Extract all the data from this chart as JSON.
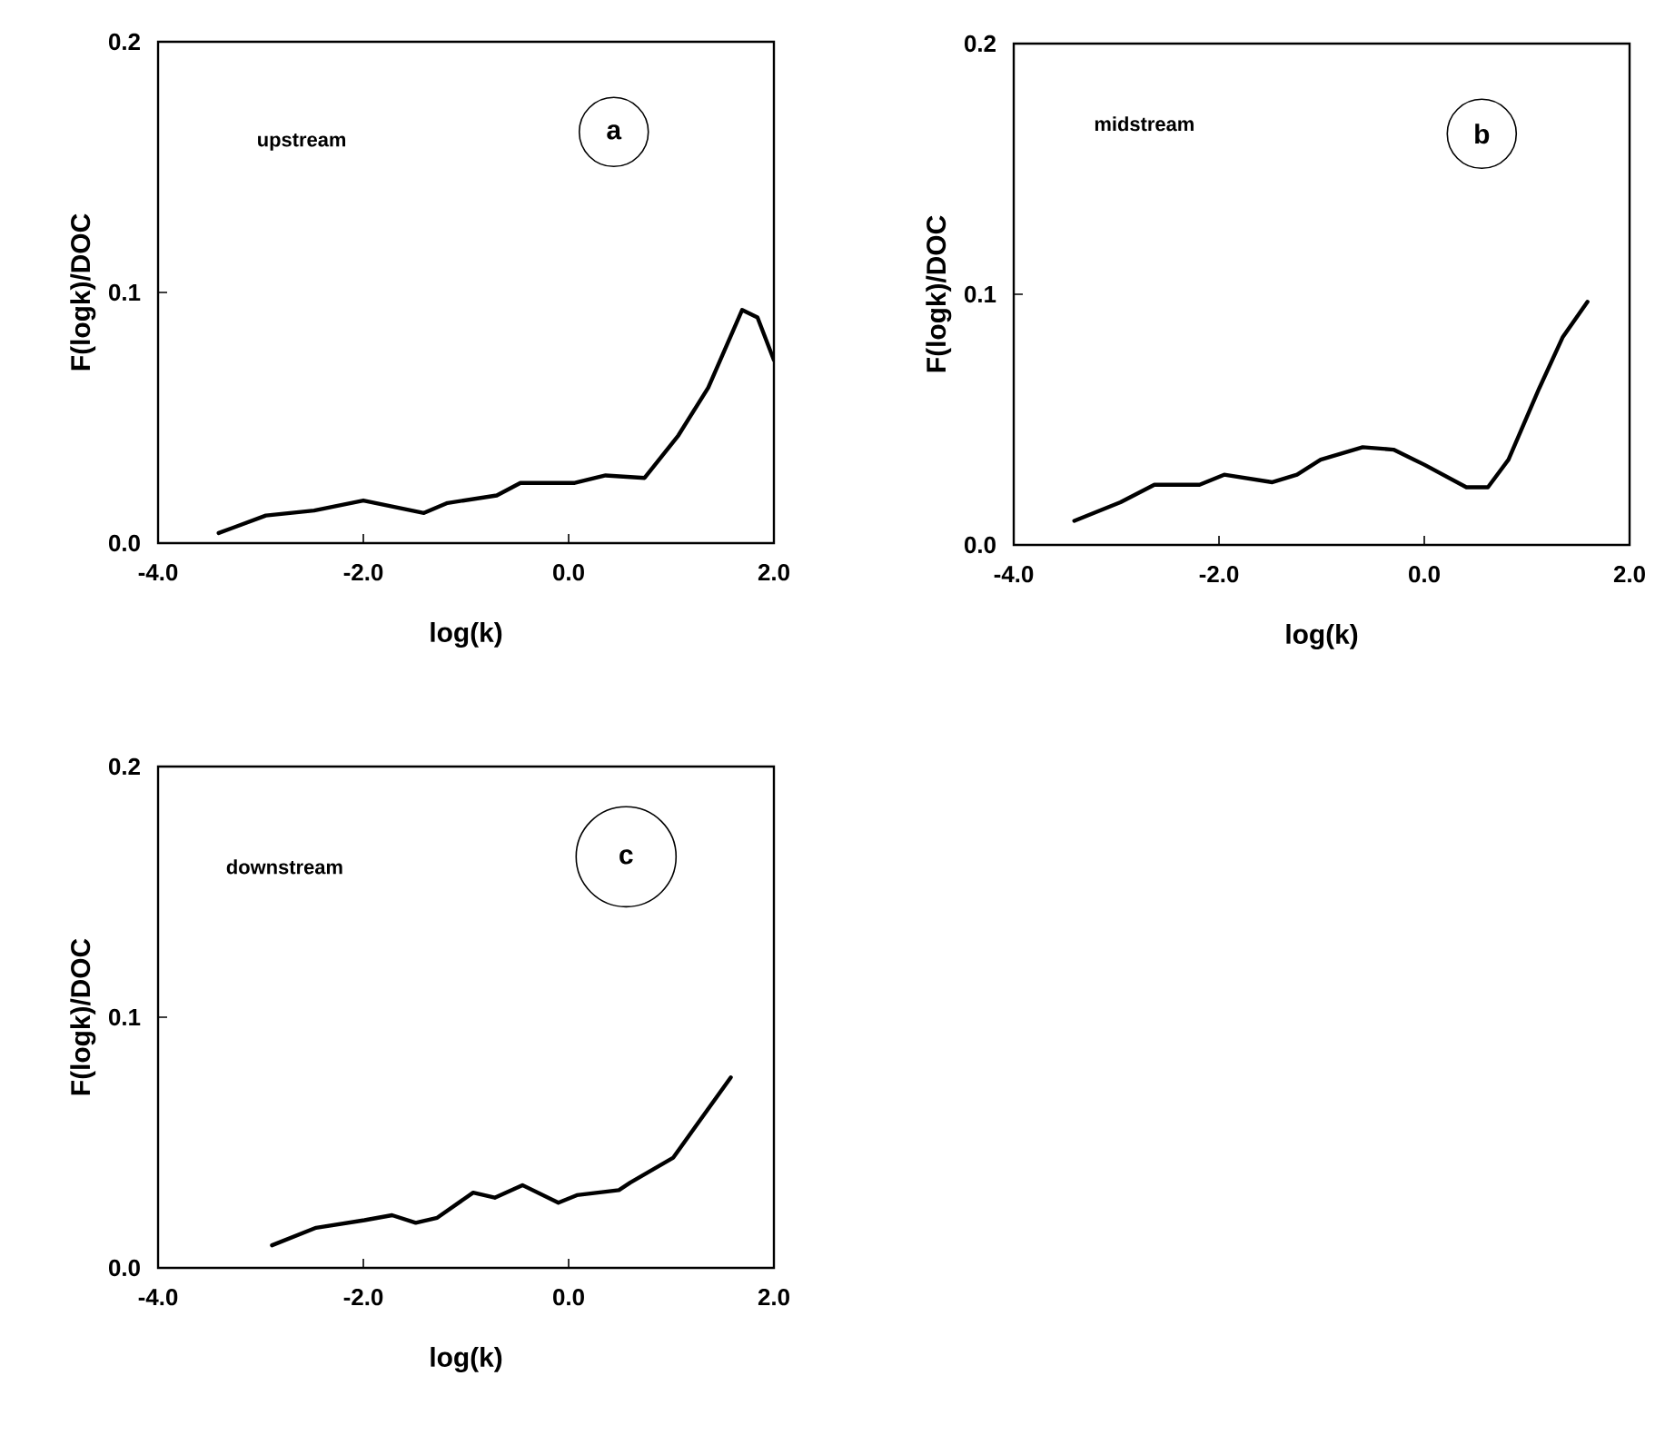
{
  "chart_data": [
    {
      "type": "line",
      "xlabel": "log(k)",
      "ylabel": "F(logk)/DOC",
      "annotations": [
        "upstream",
        "a"
      ],
      "color": "#000000",
      "x": [
        -3.41,
        -2.95,
        -2.48,
        -2.0,
        -1.41,
        -1.18,
        -0.7,
        -0.47,
        0.06,
        0.36,
        0.74,
        1.07,
        1.36,
        1.69,
        1.84,
        2.0
      ],
      "values": [
        0.004,
        0.011,
        0.013,
        0.017,
        0.012,
        0.016,
        0.019,
        0.024,
        0.024,
        0.027,
        0.026,
        0.043,
        0.062,
        0.093,
        0.09,
        0.073
      ],
      "xlim": [
        -4,
        2
      ],
      "ylim": [
        0,
        0.2
      ],
      "xticks": [
        {
          "value": -4,
          "label": "-4.0"
        },
        {
          "value": -2,
          "label": "-2.0"
        },
        {
          "value": 0,
          "label": "0.0"
        },
        {
          "value": 2,
          "label": "2.0"
        }
      ],
      "yticks": [
        {
          "value": 0,
          "label": "0.0"
        },
        {
          "value": 0.1,
          "label": "0.1"
        },
        {
          "value": 0.2,
          "label": "0.2"
        }
      ],
      "line_style": "solid",
      "marker": "none"
    },
    {
      "type": "line",
      "xlabel": "log(k)",
      "ylabel": "F(logk)/DOC",
      "annotations": [
        "midstream",
        "b"
      ],
      "color": "#000000",
      "x": [
        -3.41,
        -2.96,
        -2.63,
        -2.19,
        -1.95,
        -1.48,
        -1.24,
        -1.01,
        -0.6,
        -0.3,
        0.0,
        0.41,
        0.62,
        0.82,
        1.12,
        1.35,
        1.59
      ],
      "values": [
        0.0096,
        0.017,
        0.024,
        0.024,
        0.028,
        0.025,
        0.028,
        0.034,
        0.039,
        0.038,
        0.032,
        0.023,
        0.023,
        0.034,
        0.0625,
        0.083,
        0.097
      ],
      "xlim": [
        -4,
        2
      ],
      "ylim": [
        0,
        0.2
      ],
      "xticks": [
        {
          "value": -4,
          "label": "-4.0"
        },
        {
          "value": -2,
          "label": "-2.0"
        },
        {
          "value": 0,
          "label": "0.0"
        },
        {
          "value": 2,
          "label": "2.0"
        }
      ],
      "yticks": [
        {
          "value": 0,
          "label": "0.0"
        },
        {
          "value": 0.1,
          "label": "0.1"
        },
        {
          "value": 0.2,
          "label": "0.2"
        }
      ],
      "line_style": "solid",
      "marker": "none"
    },
    {
      "type": "line",
      "xlabel": "log(k)",
      "ylabel": "F(logk)/DOC",
      "annotations": [
        "downstream",
        "c"
      ],
      "color": "#000000",
      "x": [
        -2.89,
        -2.46,
        -1.99,
        -1.72,
        -1.49,
        -1.28,
        -0.93,
        -0.72,
        -0.45,
        -0.1,
        0.08,
        0.49,
        0.6,
        1.02,
        1.58
      ],
      "values": [
        0.009,
        0.016,
        0.019,
        0.021,
        0.018,
        0.02,
        0.03,
        0.028,
        0.033,
        0.026,
        0.029,
        0.031,
        0.034,
        0.044,
        0.076
      ],
      "xlim": [
        -4,
        2
      ],
      "ylim": [
        0,
        0.2
      ],
      "xticks": [
        {
          "value": -4,
          "label": "-4.0"
        },
        {
          "value": -2,
          "label": "-2.0"
        },
        {
          "value": 0,
          "label": "0.0"
        },
        {
          "value": 2,
          "label": "2.0"
        }
      ],
      "yticks": [
        {
          "value": 0,
          "label": "0.0"
        },
        {
          "value": 0.1,
          "label": "0.1"
        },
        {
          "value": 0.2,
          "label": "0.2"
        }
      ],
      "line_style": "solid",
      "marker": "none"
    }
  ]
}
